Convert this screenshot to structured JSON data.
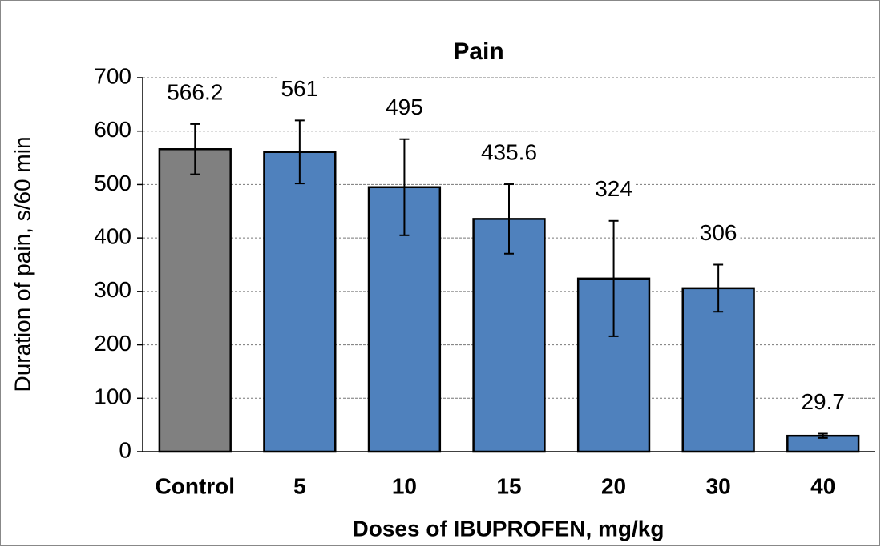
{
  "chart_data": {
    "type": "bar",
    "title": "Pain",
    "x_label": "Doses of IBUPROFEN, mg/kg",
    "y_label": "Duration of pain, s/60 min",
    "categories": [
      "Control",
      "5",
      "10",
      "15",
      "20",
      "30",
      "40"
    ],
    "values": [
      566.2,
      561,
      495,
      435.6,
      324,
      306,
      29.7
    ],
    "errors": [
      47,
      59,
      90,
      65,
      108,
      44,
      4
    ],
    "colors": [
      "#808080",
      "#4f81bd",
      "#4f81bd",
      "#4f81bd",
      "#4f81bd",
      "#4f81bd",
      "#4f81bd"
    ],
    "ylim": [
      0,
      700
    ],
    "yticks": [
      0,
      100,
      200,
      300,
      400,
      500,
      600,
      700
    ],
    "grid": true
  }
}
